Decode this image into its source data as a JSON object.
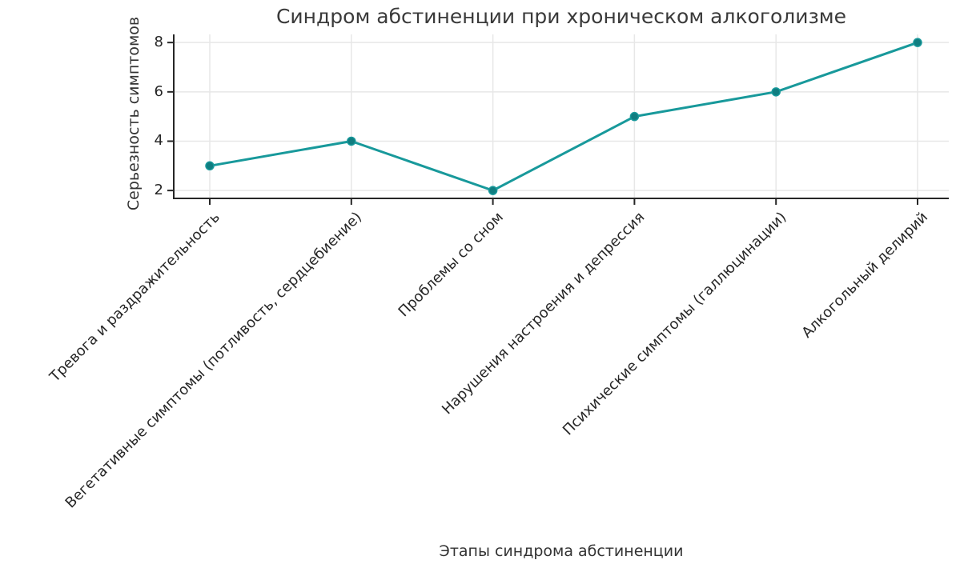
{
  "chart_data": {
    "type": "line",
    "title": "Синдром абстиненции при хроническом алкоголизме",
    "xlabel": "Этапы синдрома абстиненции",
    "ylabel": "Серьезность симптомов",
    "categories": [
      "Тревога и раздражительность",
      "Вегетативные симптомы (потливость, сердцебиение)",
      "Проблемы со сном",
      "Нарушения настроения и депрессия",
      "Психические симптомы (галлюцинации)",
      "Алкогольный делирий"
    ],
    "series": [
      {
        "name": "Серьезность симптомов",
        "values": [
          3,
          4,
          2,
          5,
          6,
          8
        ]
      }
    ],
    "yticks": [
      2,
      4,
      6,
      8
    ],
    "ylim": [
      1.68,
      8.33
    ],
    "grid": true,
    "legend_position": "none",
    "colors": {
      "line": "#18999b",
      "marker": "#107d80",
      "grid": "#e7e7e7",
      "spine": "#262626",
      "text": "#333333",
      "background": "#ffffff"
    }
  }
}
